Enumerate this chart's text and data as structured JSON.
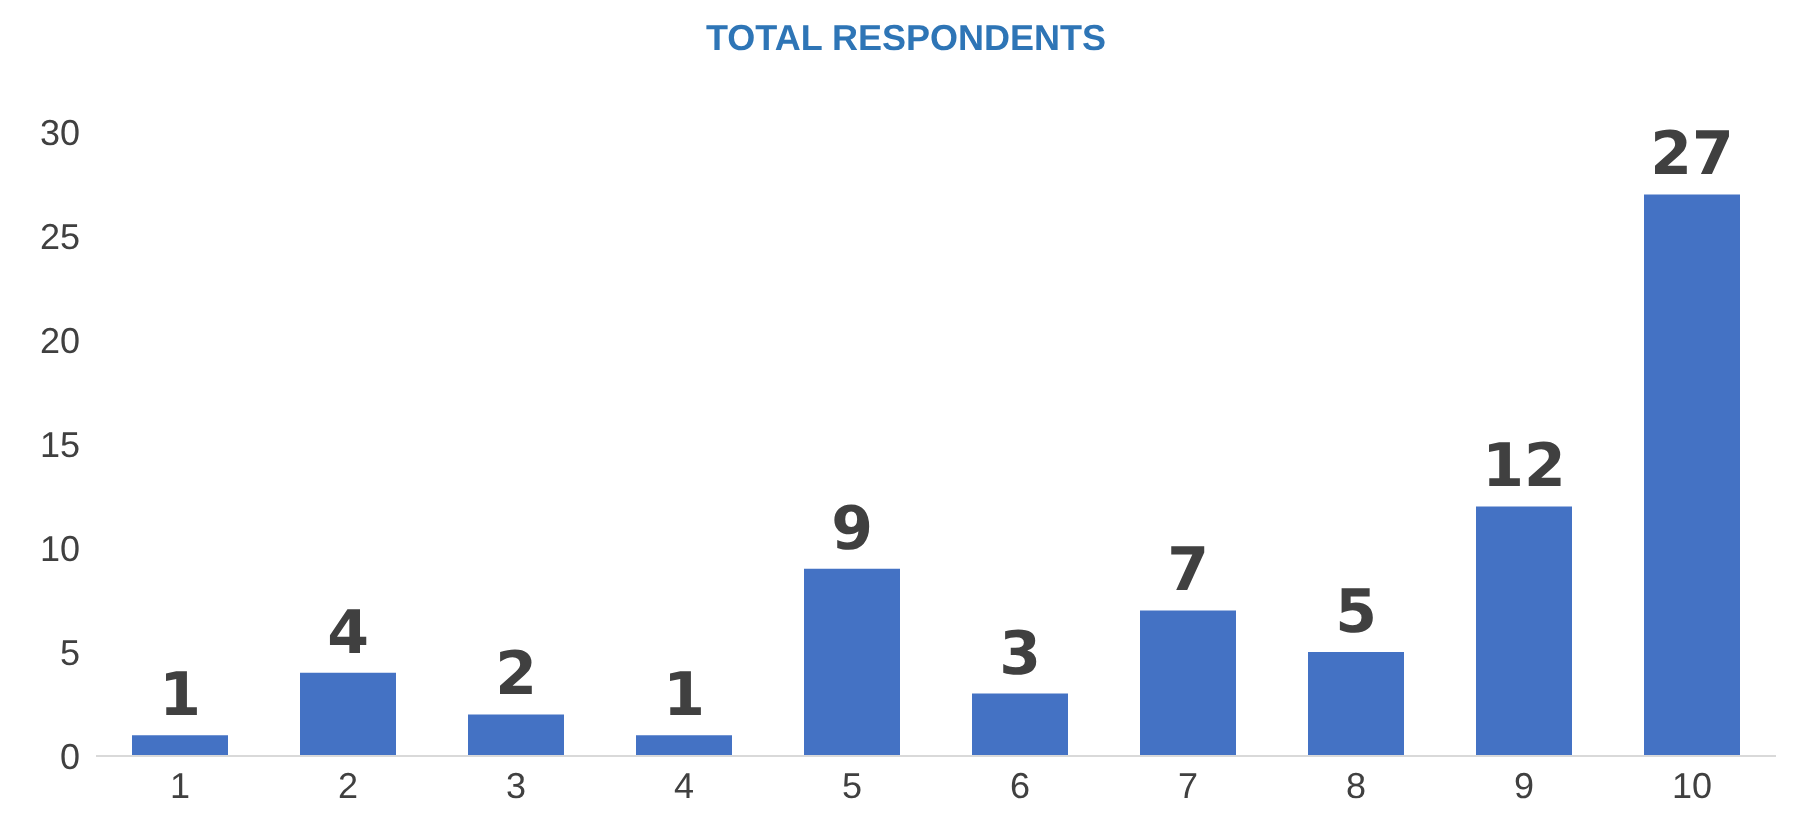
{
  "chart_data": {
    "type": "bar",
    "title": "TOTAL RESPONDENTS",
    "categories": [
      "1",
      "2",
      "3",
      "4",
      "5",
      "6",
      "7",
      "8",
      "9",
      "10"
    ],
    "values": [
      1,
      4,
      2,
      1,
      9,
      3,
      7,
      5,
      12,
      27
    ],
    "color": "#4472c4",
    "ylim": [
      0,
      30
    ],
    "yticks": [
      0,
      5,
      10,
      15,
      20,
      25,
      30
    ],
    "grid": false,
    "data_labels": true
  }
}
